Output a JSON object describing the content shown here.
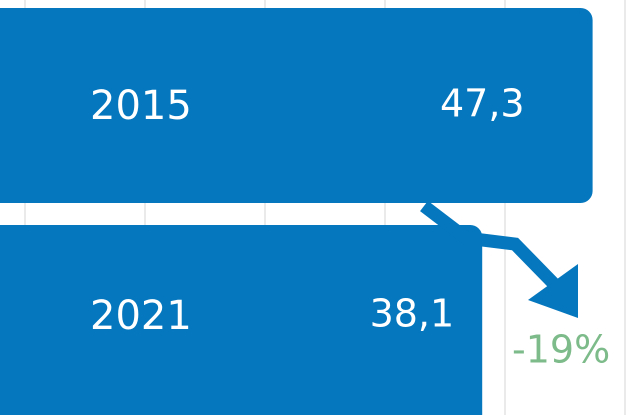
{
  "chart_data": {
    "type": "barh",
    "categories": [
      "2015",
      "2021"
    ],
    "values": [
      47.3,
      38.1
    ],
    "value_labels": [
      "47,3",
      "38,1"
    ],
    "color": "#0477be",
    "xlim": [
      0,
      50
    ],
    "xticks": [
      0,
      10,
      20,
      30,
      40,
      50
    ],
    "grid": true,
    "annotation": "-19%",
    "annotation_color": "#7dbb8a"
  }
}
